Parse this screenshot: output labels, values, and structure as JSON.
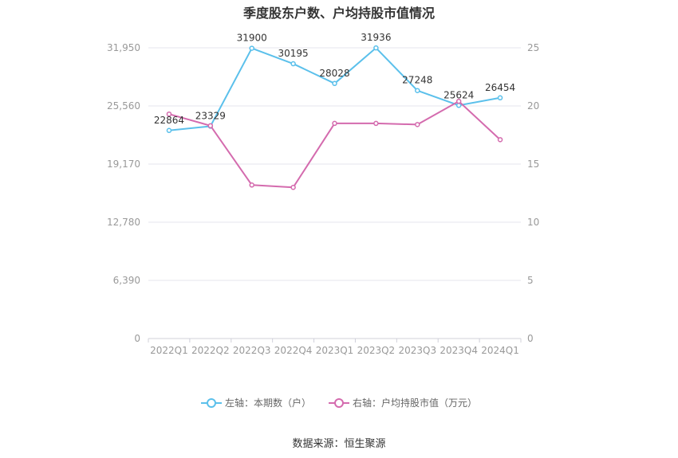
{
  "title": "季度股东户数、户均持股市值情况",
  "source": "数据来源：恒生聚源",
  "colors": {
    "left_series": "#5BC0EB",
    "right_series": "#D46BAE",
    "grid": "#E6E6EE",
    "axis_text": "#999999"
  },
  "chart_data": {
    "type": "line",
    "categories": [
      "2022Q1",
      "2022Q2",
      "2022Q3",
      "2022Q4",
      "2023Q1",
      "2023Q2",
      "2023Q3",
      "2023Q4",
      "2024Q1"
    ],
    "left_axis": {
      "ticks": [
        "0",
        "6,390",
        "12,780",
        "19,170",
        "25,560",
        "31,950"
      ],
      "ylim": [
        0,
        31950
      ]
    },
    "right_axis": {
      "ticks": [
        "0",
        "5",
        "10",
        "15",
        "20",
        "25"
      ],
      "ylim": [
        0,
        25
      ]
    },
    "series": [
      {
        "name": "左轴：本期数（户）",
        "axis": "left",
        "values": [
          22864,
          23329,
          31900,
          30195,
          28028,
          31936,
          27248,
          25624,
          26454
        ],
        "labels": [
          "22864",
          "23329",
          "31900",
          "30195",
          "28028",
          "31936",
          "27248",
          "25624",
          "26454"
        ]
      },
      {
        "name": "右轴：户均持股市值（万元）",
        "axis": "right",
        "values": [
          19.3,
          18.3,
          13.2,
          13.0,
          18.5,
          18.5,
          18.4,
          20.4,
          17.1
        ]
      }
    ],
    "grid": true,
    "legend_position": "bottom"
  }
}
